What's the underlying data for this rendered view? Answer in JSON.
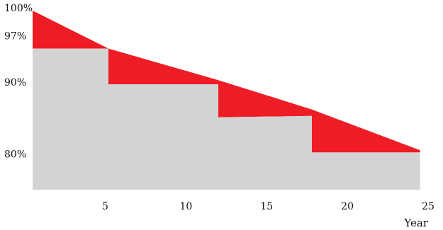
{
  "colors": {
    "guaranteed_area": "#d3d3d3",
    "degradation_area": "#ee1c25",
    "text": "#111111"
  },
  "chart_data": {
    "type": "area",
    "title": "",
    "xlabel": "Year",
    "ylabel": "",
    "xlim": [
      0.5,
      25
    ],
    "ylim": [
      75,
      100
    ],
    "x_ticks": [
      5,
      10,
      15,
      20,
      25
    ],
    "x_tick_labels": [
      "5",
      "10",
      "15",
      "20",
      "25"
    ],
    "y_ticks": [
      80,
      90,
      97,
      100
    ],
    "y_tick_labels": [
      "80%",
      "90%",
      "97%",
      "100%"
    ],
    "grid": false,
    "legend": "none",
    "series": [
      {
        "type": "linear",
        "color": "#ee1c25",
        "points": [
          [
            0.5,
            100
          ],
          [
            5.2,
            94.7
          ],
          [
            12,
            90.3
          ],
          [
            17.8,
            86.2
          ],
          [
            24.5,
            80.5
          ]
        ]
      },
      {
        "type": "step",
        "color": "#d3d3d3",
        "points": [
          [
            0.5,
            94.7
          ],
          [
            5.2,
            94.7
          ],
          [
            5.2,
            89.7
          ],
          [
            12,
            89.7
          ],
          [
            12,
            85.1
          ],
          [
            17.8,
            85.3
          ],
          [
            17.8,
            80.2
          ],
          [
            24.5,
            80.2
          ]
        ]
      }
    ]
  }
}
